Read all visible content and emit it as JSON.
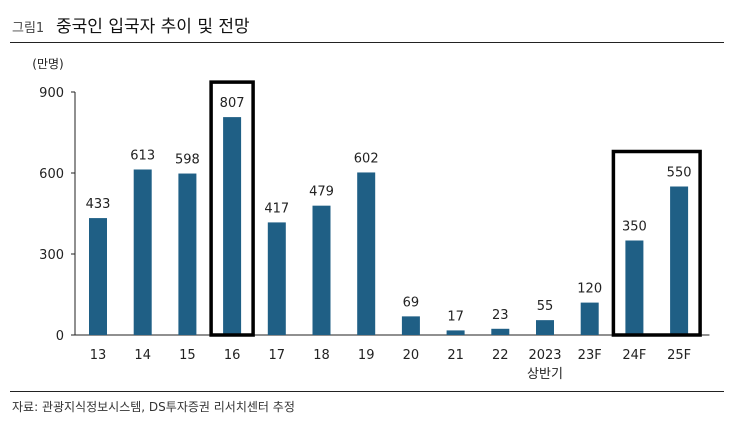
{
  "header": {
    "figure_label": "그림1",
    "title": "중국인 입국자 추이 및 전망"
  },
  "footer": {
    "source": "자료: 관광지식정보시스템, DS투자증권 리서치센터 추정"
  },
  "colors": {
    "bar": "#1f5f85",
    "highlight_box": "#000000",
    "axis": "#222222"
  },
  "chart_data": {
    "type": "bar",
    "ylabel": "(만명)",
    "ylim": [
      0,
      900
    ],
    "yticks": [
      0,
      300,
      600,
      900
    ],
    "categories": [
      [
        "13"
      ],
      [
        "14"
      ],
      [
        "15"
      ],
      [
        "16"
      ],
      [
        "17"
      ],
      [
        "18"
      ],
      [
        "19"
      ],
      [
        "20"
      ],
      [
        "21"
      ],
      [
        "22"
      ],
      [
        "2023",
        "상반기"
      ],
      [
        "23F"
      ],
      [
        "24F"
      ],
      [
        "25F"
      ]
    ],
    "values": [
      433,
      613,
      598,
      807,
      417,
      479,
      602,
      69,
      17,
      23,
      55,
      120,
      350,
      550
    ],
    "data_labels": [
      "433",
      "613",
      "598",
      "807",
      "417",
      "479",
      "602",
      "69",
      "17",
      "23",
      "55",
      "120",
      "350",
      "550"
    ],
    "highlight_groups": [
      [
        3,
        3
      ],
      [
        12,
        13
      ]
    ],
    "grid": false,
    "legend": "none"
  }
}
